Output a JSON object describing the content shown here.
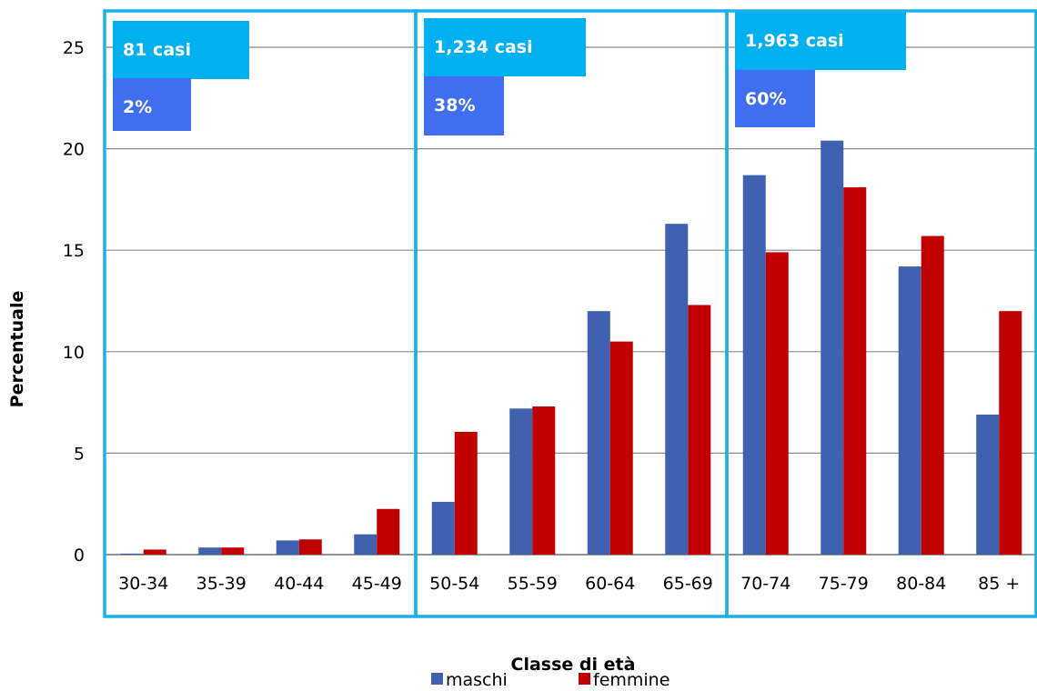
{
  "chart_data": {
    "type": "bar",
    "ylabel": "Percentuale",
    "xlabel": "Classe di età",
    "ylim": [
      0,
      25
    ],
    "yticks": [
      0,
      5,
      10,
      15,
      20,
      25
    ],
    "grid": true,
    "legend": "bottom",
    "categories": [
      "30-34",
      "35-39",
      "40-44",
      "45-49",
      "50-54",
      "55-59",
      "60-64",
      "65-69",
      "70-74",
      "75-79",
      "80-84",
      "85 +"
    ],
    "series": [
      {
        "name": "maschi",
        "color": "#4060b0",
        "values": [
          0.05,
          0.35,
          0.7,
          1.0,
          2.6,
          7.2,
          12.0,
          16.3,
          18.7,
          20.4,
          14.2,
          6.9
        ]
      },
      {
        "name": "femmine",
        "color": "#c00000",
        "values": [
          0.25,
          0.35,
          0.75,
          2.25,
          6.05,
          7.3,
          10.5,
          12.3,
          14.9,
          18.1,
          15.7,
          12.0
        ]
      }
    ],
    "groups": [
      {
        "first": 0,
        "last": 3,
        "cases": "81 casi",
        "percent": "2%"
      },
      {
        "first": 4,
        "last": 7,
        "cases": "1,234 casi",
        "percent": "38%"
      },
      {
        "first": 8,
        "last": 11,
        "cases": "1,963 casi",
        "percent": "60%"
      }
    ]
  },
  "colors": {
    "group_border": "#1ab0e8",
    "cases_fill": "#00b0f0",
    "percent_fill": "#3f6ef0"
  }
}
